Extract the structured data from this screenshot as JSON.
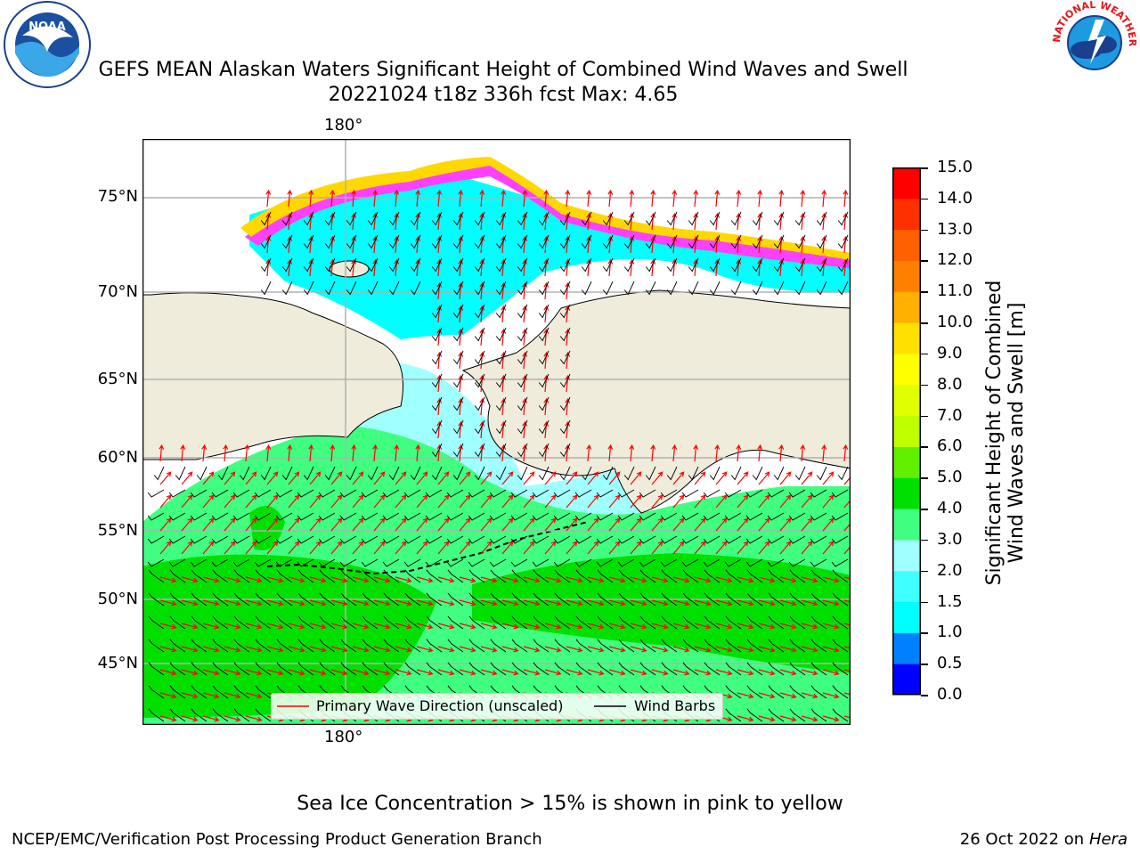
{
  "title_line1": "GEFS MEAN Alaskan Waters Significant Height of Combined Wind Waves and Swell",
  "title_line2": "20221024 t18z 336h fcst   Max: 4.65",
  "map": {
    "lon_tick_top": "180°",
    "lon_tick_bottom": "180°",
    "lat_ticks": [
      "75°N",
      "70°N",
      "65°N",
      "60°N",
      "55°N",
      "50°N",
      "45°N"
    ],
    "colors": {
      "land": "#efecdb",
      "frame": "#000000",
      "grid": "#b0b0b0",
      "wave_arrow": "#ff0000",
      "wind_barb": "#000000"
    }
  },
  "legend": {
    "wave_label": "Primary Wave Direction (unscaled)",
    "wind_label": "Wind Barbs"
  },
  "colorbar": {
    "label_line1": "Significant Height of Combined",
    "label_line2": "Wind Waves and Swell [m]",
    "ticks": [
      "15.0",
      "14.0",
      "13.0",
      "12.0",
      "11.0",
      "10.0",
      "9.0",
      "8.0",
      "7.0",
      "6.0",
      "5.0",
      "4.0",
      "3.0",
      "2.0",
      "1.5",
      "1.0",
      "0.5",
      "0.0"
    ],
    "bins": [
      {
        "from": 0.0,
        "to": 0.5,
        "color": "#0000ff"
      },
      {
        "from": 0.5,
        "to": 1.0,
        "color": "#0080ff"
      },
      {
        "from": 1.0,
        "to": 1.5,
        "color": "#00ffff"
      },
      {
        "from": 1.5,
        "to": 2.0,
        "color": "#40ffff"
      },
      {
        "from": 2.0,
        "to": 3.0,
        "color": "#a0ffff"
      },
      {
        "from": 3.0,
        "to": 4.0,
        "color": "#40ff80"
      },
      {
        "from": 4.0,
        "to": 5.0,
        "color": "#00e000"
      },
      {
        "from": 5.0,
        "to": 6.0,
        "color": "#60f000"
      },
      {
        "from": 6.0,
        "to": 7.0,
        "color": "#c0ff00"
      },
      {
        "from": 7.0,
        "to": 8.0,
        "color": "#e0ff00"
      },
      {
        "from": 8.0,
        "to": 9.0,
        "color": "#ffff00"
      },
      {
        "from": 9.0,
        "to": 10.0,
        "color": "#ffe000"
      },
      {
        "from": 10.0,
        "to": 11.0,
        "color": "#ffb000"
      },
      {
        "from": 11.0,
        "to": 12.0,
        "color": "#ff8000"
      },
      {
        "from": 12.0,
        "to": 13.0,
        "color": "#ff6000"
      },
      {
        "from": 13.0,
        "to": 14.0,
        "color": "#ff3000"
      },
      {
        "from": 14.0,
        "to": 15.0,
        "color": "#ff0000"
      }
    ]
  },
  "footer": {
    "note": "Sea Ice Concentration > 15% is shown in pink to yellow",
    "left": "NCEP/EMC/Verification Post Processing Product Generation Branch",
    "right_prefix": "26 Oct 2022 on ",
    "right_host": "Hera"
  },
  "logos": {
    "noaa": "NOAA",
    "nws": "NATIONAL WEATHER SERVICE"
  }
}
